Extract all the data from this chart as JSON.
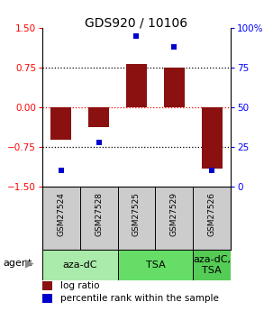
{
  "title": "GDS920 / 10106",
  "samples": [
    "GSM27524",
    "GSM27528",
    "GSM27525",
    "GSM27529",
    "GSM27526"
  ],
  "log_ratios": [
    -0.62,
    -0.38,
    0.82,
    0.75,
    -1.15
  ],
  "percentile_ranks": [
    10,
    28,
    95,
    88,
    10
  ],
  "ylim_left": [
    -1.5,
    1.5
  ],
  "ylim_right": [
    0,
    100
  ],
  "yticks_left": [
    -1.5,
    -0.75,
    0,
    0.75,
    1.5
  ],
  "yticks_right": [
    0,
    25,
    50,
    75,
    100
  ],
  "hlines": [
    -0.75,
    0,
    0.75
  ],
  "bar_color": "#8B1010",
  "dot_color": "#0000CC",
  "agent_groups": [
    {
      "label": "aza-dC",
      "start": 0,
      "end": 2,
      "color": "#aaeaaa"
    },
    {
      "label": "TSA",
      "start": 2,
      "end": 4,
      "color": "#66dd66"
    },
    {
      "label": "aza-dC,\nTSA",
      "start": 4,
      "end": 5,
      "color": "#55cc55"
    }
  ],
  "legend_bar_color": "#8B1010",
  "legend_dot_color": "#0000CC",
  "title_fontsize": 10,
  "tick_fontsize": 7.5,
  "sample_fontsize": 6.5,
  "agent_fontsize": 8,
  "legend_fontsize": 7.5
}
